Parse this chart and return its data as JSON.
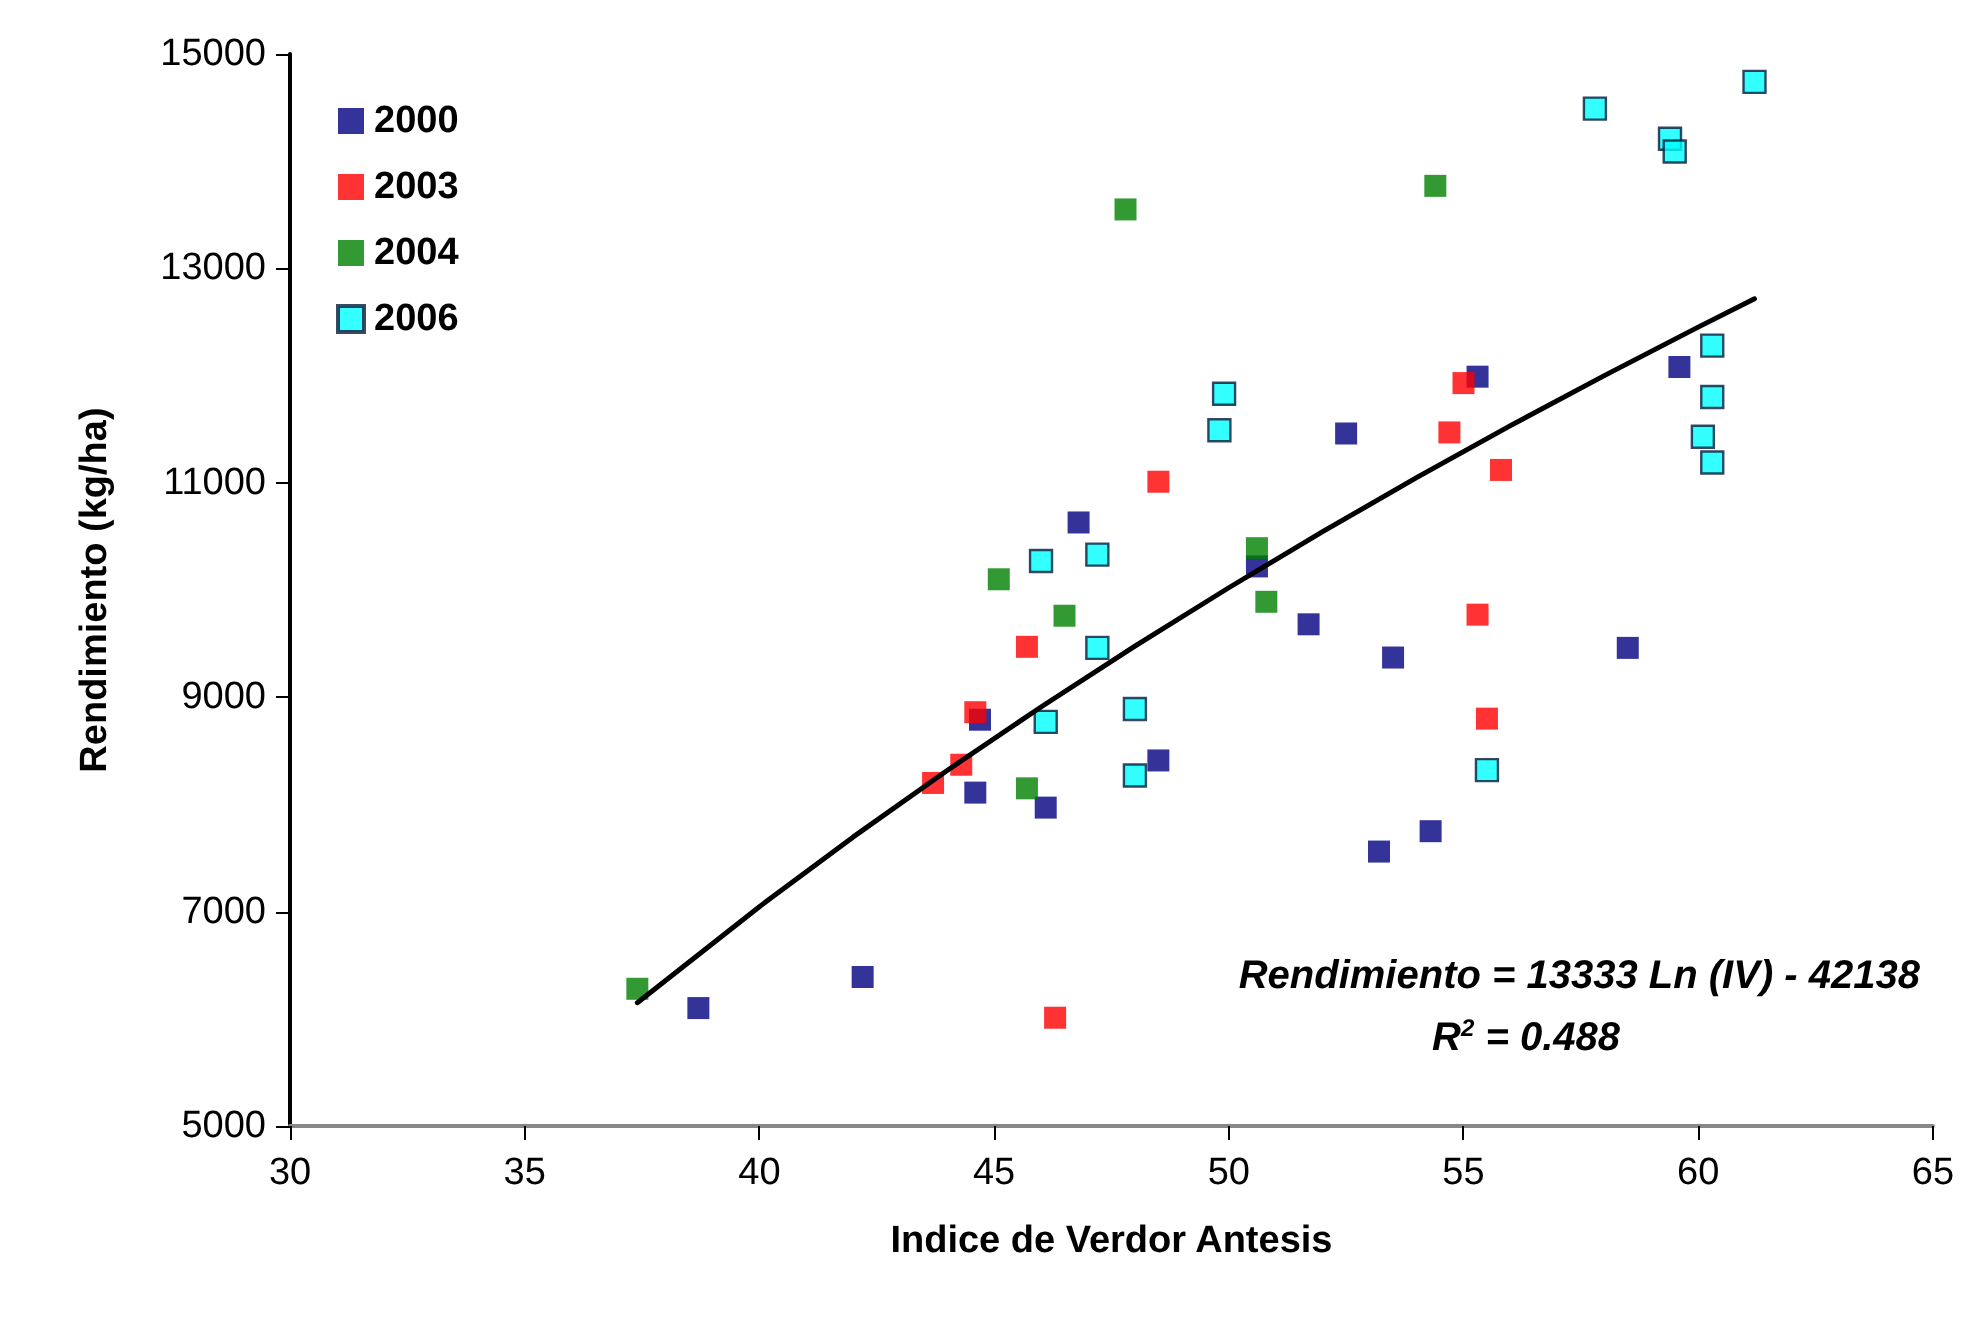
{
  "chart_data": {
    "type": "scatter",
    "xlabel": "Indice de Verdor Antesis",
    "ylabel": "Rendimiento (kg/ha)",
    "xlim": [
      30,
      65
    ],
    "xticks": [
      30,
      35,
      40,
      45,
      50,
      55,
      60,
      65
    ],
    "ylim": [
      5000,
      15000
    ],
    "yticks": [
      5000,
      7000,
      9000,
      11000,
      13000,
      15000
    ],
    "grid": false,
    "legend": "top left",
    "marker": "square",
    "series": [
      {
        "name": "2000",
        "color": "#000080",
        "x": [
          38.7,
          42.2,
          44.7,
          44.6,
          46.1,
          46.8,
          55.3,
          52.5,
          59.6,
          50.6,
          51.7,
          53.5,
          58.5,
          48.5,
          54.3,
          53.2
        ],
        "values": [
          6100,
          6390,
          8790,
          8110,
          7970,
          10630,
          11990,
          11460,
          12080,
          10220,
          9680,
          9370,
          9460,
          8410,
          7750,
          7560
        ]
      },
      {
        "name": "2003",
        "color": "#ff0000",
        "x": [
          43.7,
          44.3,
          44.6,
          45.7,
          46.3,
          48.5,
          55.0,
          54.7,
          55.8,
          55.3,
          55.5
        ],
        "values": [
          8200,
          8370,
          8860,
          9470,
          6010,
          11010,
          11930,
          11470,
          11120,
          9770,
          8800
        ]
      },
      {
        "name": "2004",
        "color": "#008000",
        "x": [
          37.4,
          45.7,
          46.5,
          45.1,
          47.8,
          54.4,
          50.6,
          50.8
        ],
        "values": [
          6280,
          8150,
          9760,
          10100,
          13550,
          13770,
          10390,
          9890
        ]
      },
      {
        "name": "2006",
        "color": "#00ffff",
        "x": [
          46.0,
          47.2,
          47.2,
          46.1,
          49.9,
          49.8,
          48.0,
          48.0,
          55.5,
          57.8,
          59.4,
          59.5,
          61.2,
          60.3,
          60.3,
          60.1,
          60.3
        ],
        "values": [
          10270,
          10330,
          9460,
          8770,
          11830,
          11490,
          8890,
          8270,
          8320,
          14490,
          14210,
          14090,
          14740,
          12280,
          11800,
          11430,
          11190
        ]
      },
      {
        "type": "line",
        "color": "#000000",
        "marker": "none",
        "line_style": "solid",
        "x": [
          37.4,
          40,
          42,
          44,
          46,
          48,
          50,
          52,
          54,
          56,
          58,
          60,
          61.2
        ],
        "values": [
          6150,
          7046,
          7697,
          8317,
          8909,
          9477,
          10021,
          10544,
          11048,
          11533,
          12000,
          12452,
          12716
        ]
      }
    ],
    "annotations": [
      "Rendimiento = 13333 Ln (IV) - 42138",
      "R$^{2}$ = 0.488"
    ]
  }
}
